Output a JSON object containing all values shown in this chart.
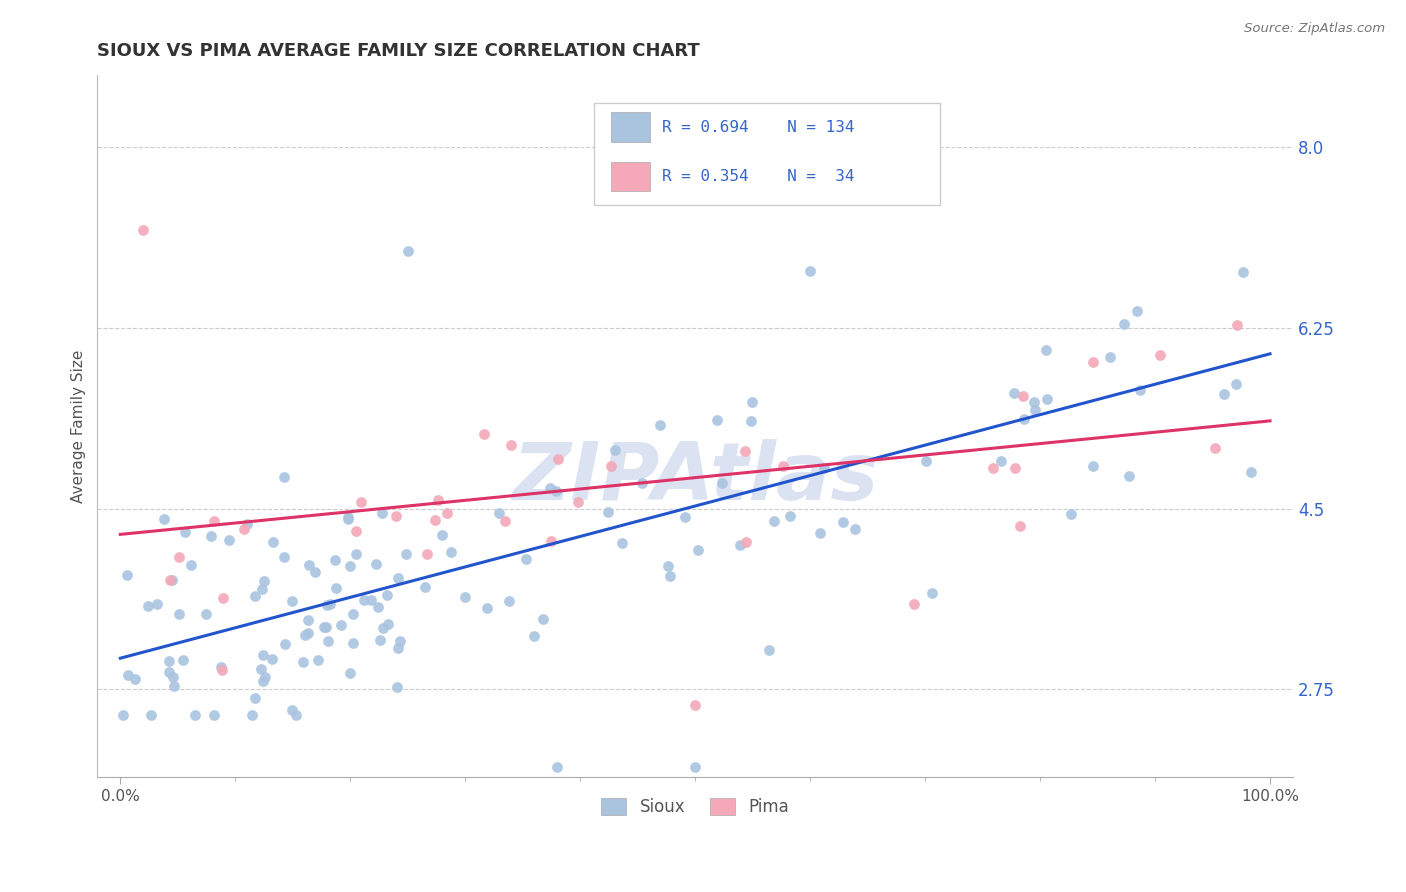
{
  "title": "SIOUX VS PIMA AVERAGE FAMILY SIZE CORRELATION CHART",
  "source_text": "Source: ZipAtlas.com",
  "ylabel": "Average Family Size",
  "xlim": [
    -2,
    102
  ],
  "ylim": [
    1.9,
    8.7
  ],
  "yticks_right": [
    2.75,
    4.5,
    6.25,
    8.0
  ],
  "blue_color": "#aac4e0",
  "pink_color": "#f4a8b8",
  "blue_line_color": "#2255cc",
  "pink_line_color": "#dd3366",
  "grid_color": "#cccccc",
  "title_color": "#333333",
  "axis_label_color": "#555555",
  "right_tick_color": "#3366cc",
  "watermark_color": "#ccd8ee",
  "sioux_trend_y": [
    3.05,
    6.0
  ],
  "pima_trend_y": [
    4.25,
    5.35
  ],
  "legend_r1": "R = 0.694",
  "legend_n1": "N = 134",
  "legend_r2": "R = 0.354",
  "legend_n2": "N =  34"
}
